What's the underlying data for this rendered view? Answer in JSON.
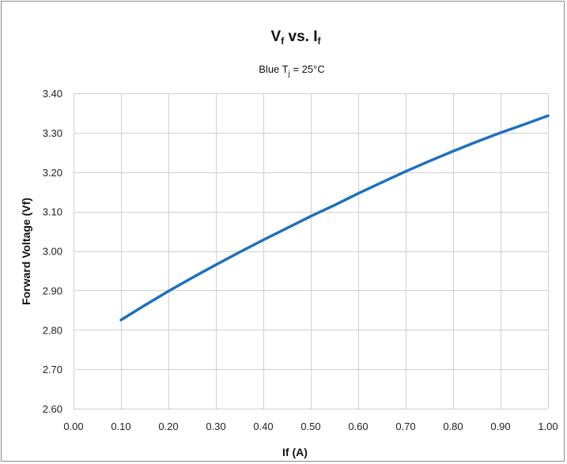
{
  "chart_data": {
    "type": "line",
    "title": {
      "main": "V",
      "sub1": "f",
      "mid": " vs. I",
      "sub2": "f"
    },
    "subtitle": {
      "pre": "Blue  T",
      "sub": "j",
      "post": " = 25°C"
    },
    "xlabel": "If (A)",
    "ylabel": "Forward Voltage (Vf)",
    "xlim": [
      0,
      1
    ],
    "ylim": [
      2.6,
      3.4
    ],
    "xticks": [
      "0.00",
      "0.10",
      "0.20",
      "0.30",
      "0.40",
      "0.50",
      "0.60",
      "0.70",
      "0.80",
      "0.90",
      "1.00"
    ],
    "yticks": [
      "2.60",
      "2.70",
      "2.80",
      "2.90",
      "3.00",
      "3.10",
      "3.20",
      "3.30",
      "3.40"
    ],
    "grid": true,
    "legend": "none",
    "series": [
      {
        "color": "#1f6fbf",
        "x": [
          0.1,
          0.15,
          0.2,
          0.25,
          0.3,
          0.35,
          0.4,
          0.45,
          0.5,
          0.55,
          0.6,
          0.65,
          0.7,
          0.75,
          0.8,
          0.85,
          0.9,
          0.95,
          1.0
        ],
        "y": [
          2.825,
          2.862,
          2.898,
          2.932,
          2.965,
          2.997,
          3.028,
          3.058,
          3.088,
          3.116,
          3.146,
          3.174,
          3.202,
          3.228,
          3.253,
          3.277,
          3.3,
          3.321,
          3.343
        ]
      }
    ]
  }
}
